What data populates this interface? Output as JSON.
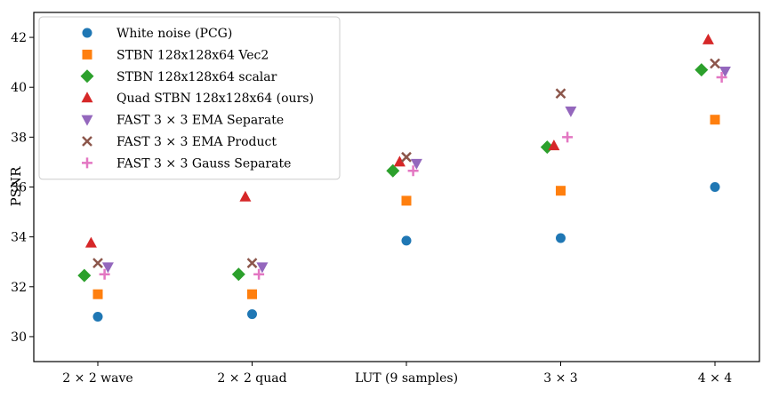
{
  "chart_data": {
    "type": "scatter",
    "title": "",
    "xlabel": "",
    "ylabel": "PSNR",
    "categories": [
      "2 × 2 wave",
      "2 × 2 quad",
      "LUT (9 samples)",
      "3 × 3",
      "4 × 4"
    ],
    "ylim": [
      29,
      43
    ],
    "yticks": [
      30,
      32,
      34,
      36,
      38,
      40,
      42
    ],
    "grid": false,
    "legend_position": "top-left",
    "series": [
      {
        "name": "White noise (PCG)",
        "color": "#1f77b4",
        "marker": "circle",
        "values": [
          30.8,
          30.9,
          33.85,
          33.95,
          36.0
        ]
      },
      {
        "name": "STBN 128x128x64 Vec2",
        "color": "#ff7f0e",
        "marker": "square",
        "values": [
          31.7,
          31.7,
          35.45,
          35.85,
          38.7
        ]
      },
      {
        "name": "STBN 128x128x64 scalar",
        "color": "#2ca02c",
        "marker": "diamond",
        "values": [
          32.45,
          32.5,
          36.65,
          37.6,
          40.7
        ]
      },
      {
        "name": "Quad STBN 128x128x64 (ours)",
        "color": "#d62728",
        "marker": "triangle-up",
        "values": [
          33.75,
          35.6,
          37.0,
          37.65,
          41.9
        ]
      },
      {
        "name": "FAST 3 × 3 EMA Separate",
        "color": "#9467bd",
        "marker": "triangle-down",
        "values": [
          32.8,
          32.8,
          36.95,
          39.05,
          40.65
        ]
      },
      {
        "name": "FAST 3 × 3 EMA Product",
        "color": "#8c564b",
        "marker": "x",
        "values": [
          32.95,
          32.95,
          37.2,
          39.75,
          40.95
        ]
      },
      {
        "name": "FAST 3 × 3 Gauss Separate",
        "color": "#e377c2",
        "marker": "plus",
        "values": [
          32.5,
          32.5,
          36.65,
          38.0,
          40.4
        ]
      }
    ]
  }
}
